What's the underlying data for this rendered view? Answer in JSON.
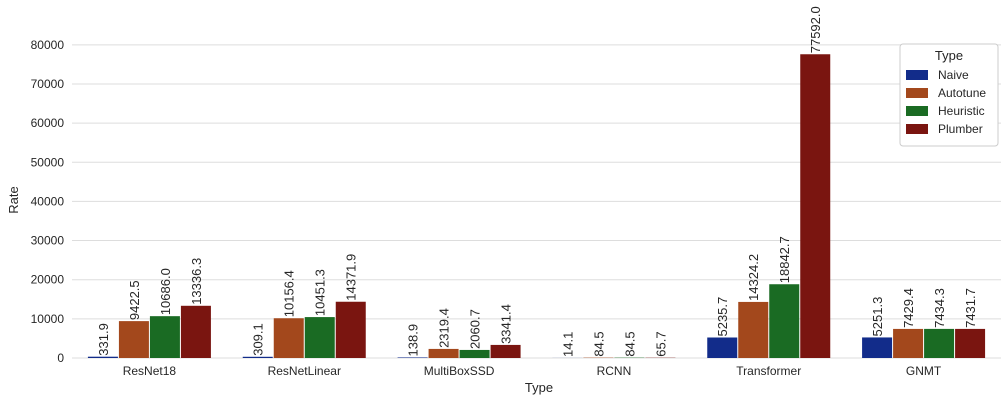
{
  "chart_data": {
    "type": "bar",
    "xlabel": "Type",
    "ylabel": "Rate",
    "ylim": [
      0,
      82000
    ],
    "yticks": [
      0,
      10000,
      20000,
      30000,
      40000,
      50000,
      60000,
      70000,
      80000
    ],
    "grid": "horizontal",
    "legend": {
      "title": "Type",
      "placement": "top-right"
    },
    "categories": [
      "ResNet18",
      "ResNetLinear",
      "MultiBoxSSD",
      "RCNN",
      "Transformer",
      "GNMT"
    ],
    "series": [
      {
        "name": "Naive",
        "color": "#122c8a",
        "values": [
          331.9,
          309.1,
          138.9,
          14.1,
          5235.7,
          5251.3
        ],
        "labels": [
          "331.9",
          "309.1",
          "138.9",
          "14.1",
          "5235.7",
          "5251.3"
        ]
      },
      {
        "name": "Autotune",
        "color": "#a3481c",
        "values": [
          9422.5,
          10156.4,
          2319.4,
          84.5,
          14324.2,
          7429.4
        ],
        "labels": [
          "9422.5",
          "10156.4",
          "2319.4",
          "84.5",
          "14324.2",
          "7429.4"
        ]
      },
      {
        "name": "Heuristic",
        "color": "#1a6b23",
        "values": [
          10686.0,
          10451.3,
          2060.7,
          84.5,
          18842.7,
          7434.3
        ],
        "labels": [
          "10686.0",
          "10451.3",
          "2060.7",
          "84.5",
          "18842.7",
          "7434.3"
        ]
      },
      {
        "name": "Plumber",
        "color": "#7a1510",
        "values": [
          13336.3,
          14371.9,
          3341.4,
          65.7,
          77592.0,
          7431.7
        ],
        "labels": [
          "13336.3",
          "14371.9",
          "3341.4",
          "65.7",
          "77592.0",
          "7431.7"
        ]
      }
    ]
  }
}
